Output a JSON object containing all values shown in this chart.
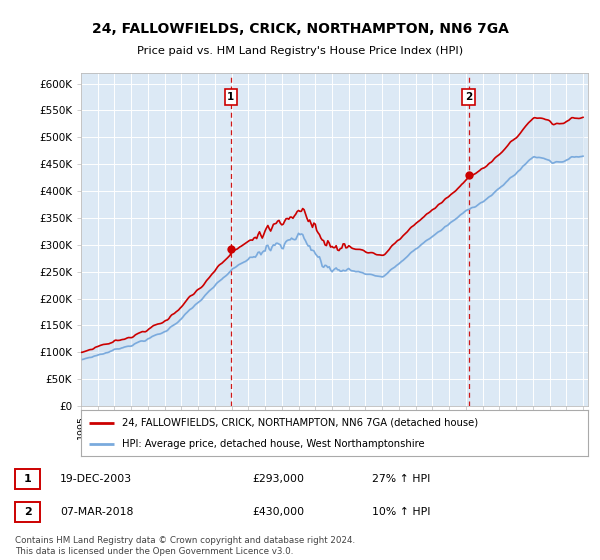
{
  "title": "24, FALLOWFIELDS, CRICK, NORTHAMPTON, NN6 7GA",
  "subtitle": "Price paid vs. HM Land Registry's House Price Index (HPI)",
  "ylabel_ticks": [
    "£0",
    "£50K",
    "£100K",
    "£150K",
    "£200K",
    "£250K",
    "£300K",
    "£350K",
    "£400K",
    "£450K",
    "£500K",
    "£550K",
    "£600K"
  ],
  "ytick_values": [
    0,
    50000,
    100000,
    150000,
    200000,
    250000,
    300000,
    350000,
    400000,
    450000,
    500000,
    550000,
    600000
  ],
  "ylim": [
    0,
    620000
  ],
  "background_color": "#dce9f5",
  "fig_bg_color": "#ffffff",
  "red_color": "#cc0000",
  "blue_color": "#7aaadd",
  "fill_color": "#c5d9ee",
  "sale1_date": "19-DEC-2003",
  "sale1_price": 293000,
  "sale1_pct": "27%",
  "sale2_date": "07-MAR-2018",
  "sale2_price": 430000,
  "sale2_pct": "10%",
  "legend_property": "24, FALLOWFIELDS, CRICK, NORTHAMPTON, NN6 7GA (detached house)",
  "legend_hpi": "HPI: Average price, detached house, West Northamptonshire",
  "footnote": "Contains HM Land Registry data © Crown copyright and database right 2024.\nThis data is licensed under the Open Government Licence v3.0.",
  "sale1_x": 2003.96,
  "sale2_x": 2018.17,
  "marker1_price": 293000,
  "marker2_price": 430000
}
